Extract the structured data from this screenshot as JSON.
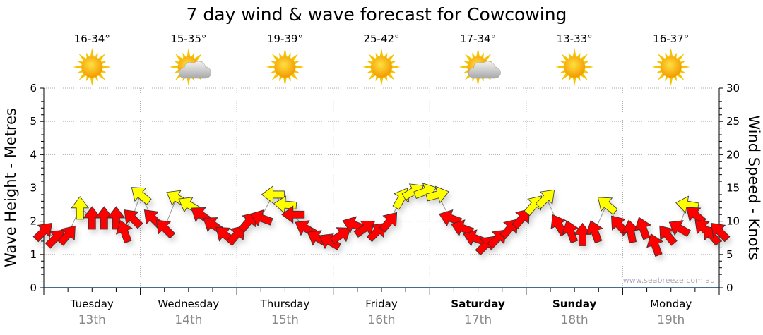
{
  "chart_data": {
    "type": "scatter",
    "title": "7 day wind & wave forecast for Cowcowing",
    "ylabel_left": "Wave Height - Metres",
    "ylabel_right": "Wind Speed - Knots",
    "ylim_left": [
      0,
      6
    ],
    "ylim_right": [
      0,
      30
    ],
    "yticks_left": [
      "0",
      "1",
      "2",
      "3",
      "4",
      "5",
      "6"
    ],
    "yticks_right": [
      "0",
      "5",
      "10",
      "15",
      "20",
      "25",
      "30"
    ],
    "grid": true,
    "watermark": "www.seabreeze.com.au",
    "days": [
      {
        "name": "Tuesday",
        "date": "13th",
        "temp": "16-34°",
        "icon": "sunny",
        "weekend": false
      },
      {
        "name": "Wednesday",
        "date": "14th",
        "temp": "15-35°",
        "icon": "partly-cloudy",
        "weekend": false
      },
      {
        "name": "Thursday",
        "date": "15th",
        "temp": "19-39°",
        "icon": "sunny",
        "weekend": false
      },
      {
        "name": "Friday",
        "date": "16th",
        "temp": "25-42°",
        "icon": "sunny",
        "weekend": false
      },
      {
        "name": "Saturday",
        "date": "17th",
        "temp": "17-34°",
        "icon": "partly-cloudy",
        "weekend": true
      },
      {
        "name": "Sunday",
        "date": "18th",
        "temp": "13-33°",
        "icon": "sunny",
        "weekend": true
      },
      {
        "name": "Monday",
        "date": "19th",
        "temp": "16-37°",
        "icon": "sunny",
        "weekend": false
      }
    ],
    "colors": {
      "red": "#ff0000",
      "yellow": "#ffff00"
    },
    "wind_series": [
      [
        0,
        8.5,
        45,
        "red"
      ],
      [
        3,
        7.5,
        45,
        "red"
      ],
      [
        6,
        8,
        40,
        "red"
      ],
      [
        9,
        12,
        0,
        "yellow"
      ],
      [
        12,
        10.5,
        0,
        "red"
      ],
      [
        15,
        10.5,
        0,
        "red"
      ],
      [
        18,
        10.5,
        0,
        "red"
      ],
      [
        20,
        8.5,
        -20,
        "red"
      ],
      [
        22,
        10.5,
        -45,
        "red"
      ],
      [
        24,
        14,
        -50,
        "yellow"
      ],
      [
        27,
        10.5,
        -45,
        "red"
      ],
      [
        30,
        9,
        -45,
        "red"
      ],
      [
        33,
        13.5,
        -60,
        "yellow"
      ],
      [
        36,
        12.5,
        -60,
        "yellow"
      ],
      [
        39,
        11,
        -55,
        "red"
      ],
      [
        42,
        9.5,
        -55,
        "red"
      ],
      [
        45,
        8,
        -50,
        "red"
      ],
      [
        48,
        8,
        40,
        "red"
      ],
      [
        51,
        10,
        40,
        "red"
      ],
      [
        54,
        10.5,
        -70,
        "red"
      ],
      [
        57,
        14,
        -90,
        "yellow"
      ],
      [
        60,
        12.5,
        -85,
        "yellow"
      ],
      [
        62,
        11,
        -90,
        "red"
      ],
      [
        65,
        9,
        -60,
        "red"
      ],
      [
        68,
        7.5,
        -60,
        "red"
      ],
      [
        71,
        7,
        -60,
        "red"
      ],
      [
        74,
        8,
        55,
        "red"
      ],
      [
        77,
        9.5,
        -70,
        "red"
      ],
      [
        80,
        9,
        55,
        "red"
      ],
      [
        83,
        8.5,
        45,
        "red"
      ],
      [
        86,
        10,
        40,
        "red"
      ],
      [
        89,
        13.5,
        30,
        "yellow"
      ],
      [
        92,
        14.5,
        60,
        "yellow"
      ],
      [
        95,
        14.5,
        70,
        "yellow"
      ],
      [
        98,
        14,
        75,
        "yellow"
      ],
      [
        101,
        10.5,
        -70,
        "red"
      ],
      [
        104,
        9,
        -70,
        "red"
      ],
      [
        107,
        7.5,
        -70,
        "red"
      ],
      [
        110,
        6.5,
        45,
        "red"
      ],
      [
        113,
        7.5,
        45,
        "red"
      ],
      [
        116,
        9,
        40,
        "red"
      ],
      [
        119,
        10.5,
        40,
        "red"
      ],
      [
        122,
        12.5,
        40,
        "yellow"
      ],
      [
        125,
        13.5,
        45,
        "yellow"
      ],
      [
        128,
        9.5,
        -30,
        "red"
      ],
      [
        131,
        8.5,
        -20,
        "red"
      ],
      [
        134,
        8,
        0,
        "red"
      ],
      [
        137,
        8.5,
        -20,
        "red"
      ],
      [
        140,
        12.5,
        -50,
        "yellow"
      ],
      [
        143,
        9.5,
        -40,
        "red"
      ],
      [
        146,
        8.5,
        -10,
        "red"
      ],
      [
        149,
        9,
        -20,
        "red"
      ],
      [
        152,
        6.5,
        -20,
        "red"
      ],
      [
        155,
        8,
        -40,
        "red"
      ],
      [
        158,
        9,
        -60,
        "red"
      ],
      [
        160,
        12.5,
        -80,
        "yellow"
      ],
      [
        162,
        11,
        -50,
        "red"
      ],
      [
        164,
        9,
        -45,
        "red"
      ],
      [
        166,
        8,
        -40,
        "red"
      ],
      [
        168,
        8.5,
        -45,
        "red"
      ]
    ]
  }
}
